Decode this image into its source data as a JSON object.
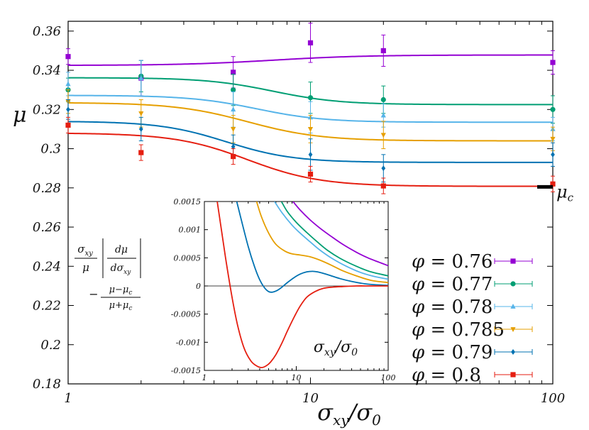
{
  "chart_data": [
    {
      "type": "scatter",
      "role": "main",
      "xscale": "log",
      "xlim": [
        1,
        100
      ],
      "ylim": [
        0.18,
        0.365
      ],
      "xticks": [
        1,
        10,
        100
      ],
      "xtick_labels": [
        "1",
        "10",
        "100"
      ],
      "yticks": [
        0.18,
        0.2,
        0.22,
        0.24,
        0.26,
        0.28,
        0.3,
        0.32,
        0.34,
        0.36
      ],
      "ytick_labels": [
        "0.18",
        "0.2",
        "0.22",
        "0.24",
        "0.26",
        "0.28",
        "0.3",
        "0.32",
        "0.34",
        "0.36"
      ],
      "xlabel_base": "σ",
      "xlabel_sub": "xy",
      "xlabel_den": "/σ",
      "xlabel_den_sub": "0",
      "ylabel": "μ",
      "annotation": {
        "text": "μ",
        "sub": "c",
        "value": 0.2805
      },
      "series": [
        {
          "name": "0.76",
          "label_prefix": "φ = ",
          "color": "#9400d3",
          "marker": "square",
          "x": [
            1,
            2,
            4.8,
            10,
            20,
            100
          ],
          "y": [
            0.347,
            0.336,
            0.339,
            0.354,
            0.35,
            0.344
          ],
          "err": [
            0.004,
            0.009,
            0.008,
            0.01,
            0.008,
            0.006
          ],
          "fit": {
            "start": 0.3425,
            "end": 0.3478,
            "center": 7,
            "width": 0.75
          }
        },
        {
          "name": "0.77",
          "label_prefix": "φ = ",
          "color": "#009e73",
          "marker": "circle",
          "x": [
            1,
            2,
            4.8,
            10,
            20,
            100
          ],
          "y": [
            0.33,
            0.337,
            0.33,
            0.326,
            0.325,
            0.32
          ],
          "err": [
            0.006,
            0.008,
            0.008,
            0.008,
            0.007,
            0.007
          ],
          "fit": {
            "start": 0.3362,
            "end": 0.3225,
            "center": 7,
            "width": 0.55
          }
        },
        {
          "name": "0.78",
          "label_prefix": "φ = ",
          "color": "#56b4e9",
          "marker": "triangle",
          "x": [
            1,
            2,
            4.8,
            10,
            20,
            100
          ],
          "y": [
            0.333,
            0.336,
            0.32,
            0.316,
            0.317,
            0.31
          ],
          "err": [
            0.006,
            0.009,
            0.009,
            0.008,
            0.006,
            0.006
          ],
          "fit": {
            "start": 0.3272,
            "end": 0.3135,
            "center": 6,
            "width": 0.55
          }
        },
        {
          "name": "0.785",
          "label_prefix": "φ = ",
          "color": "#e69f00",
          "marker": "triangle-down",
          "x": [
            1,
            2,
            4.8,
            10,
            20,
            100
          ],
          "y": [
            0.324,
            0.318,
            0.31,
            0.31,
            0.307,
            0.305
          ],
          "err": [
            0.006,
            0.007,
            0.007,
            0.007,
            0.007,
            0.006
          ],
          "fit": {
            "start": 0.3235,
            "end": 0.304,
            "center": 5.5,
            "width": 0.6
          }
        },
        {
          "name": "0.79",
          "label_prefix": "φ = ",
          "color": "#0072b2",
          "marker": "diamond",
          "x": [
            1,
            2,
            4.8,
            10,
            20,
            100
          ],
          "y": [
            0.32,
            0.31,
            0.301,
            0.297,
            0.29,
            0.297
          ],
          "err": [
            0.005,
            0.006,
            0.006,
            0.008,
            0.007,
            0.006
          ],
          "fit": {
            "start": 0.314,
            "end": 0.293,
            "center": 4.5,
            "width": 0.55
          }
        },
        {
          "name": "0.8",
          "label_prefix": "φ = ",
          "color": "#e51e10",
          "marker": "square",
          "x": [
            1,
            2,
            4.8,
            10,
            20,
            100
          ],
          "y": [
            0.312,
            0.298,
            0.296,
            0.287,
            0.281,
            0.282
          ],
          "err": [
            0.004,
            0.004,
            0.004,
            0.004,
            0.004,
            0.004
          ],
          "fit": {
            "start": 0.308,
            "end": 0.2808,
            "center": 5.5,
            "width": 0.6
          }
        }
      ]
    },
    {
      "type": "line",
      "role": "inset",
      "xscale": "log",
      "xlim": [
        1,
        100
      ],
      "ylim": [
        -0.0015,
        0.0015
      ],
      "xticks": [
        1,
        10,
        100
      ],
      "xtick_labels": [
        "1",
        "10",
        "100"
      ],
      "yticks": [
        -0.0015,
        -0.001,
        -0.0005,
        0,
        0.0005,
        0.001,
        0.0015
      ],
      "ytick_labels": [
        "-0.0015",
        "-0.001",
        "-0.0005",
        "0",
        "0.0005",
        "0.001",
        "0.0015"
      ],
      "xlabel_base": "σ",
      "xlabel_sub": "xy",
      "xlabel_den": "/σ",
      "xlabel_den_sub": "0",
      "ylabel_parts": {
        "sigma": "σ",
        "sigma_sub": "xy",
        "mu": "μ",
        "d_mu": "dμ",
        "d_sigma": "dσ",
        "d_sigma_sub": "xy",
        "minus": "−",
        "mu_minus": "μ−μ",
        "mu_plus": "μ+μ",
        "c": "c"
      },
      "series": [
        {
          "name": "0.76",
          "color": "#9400d3",
          "x": [
            9.2,
            11,
            14,
            18,
            24,
            32,
            45,
            60,
            80,
            100
          ],
          "y": [
            0.0015,
            0.00135,
            0.00118,
            0.00103,
            0.00088,
            0.00074,
            0.0006,
            0.0005,
            0.00042,
            0.00036
          ]
        },
        {
          "name": "0.77",
          "color": "#009e73",
          "x": [
            6.9,
            8,
            10,
            13,
            17,
            22,
            30,
            45,
            65,
            100
          ],
          "y": [
            0.0015,
            0.00132,
            0.00113,
            0.00095,
            0.00078,
            0.00063,
            0.00049,
            0.00035,
            0.00025,
            0.00018
          ]
        },
        {
          "name": "0.78",
          "color": "#56b4e9",
          "x": [
            5.8,
            7,
            9,
            11,
            14,
            18,
            25,
            35,
            50,
            70,
            100
          ],
          "y": [
            0.0015,
            0.0013,
            0.00108,
            0.00094,
            0.00079,
            0.00064,
            0.00048,
            0.00035,
            0.00024,
            0.00017,
            0.00012
          ]
        },
        {
          "name": "0.785",
          "color": "#e69f00",
          "x": [
            3.7,
            4.2,
            5,
            6,
            7.5,
            9,
            11,
            14,
            18,
            24,
            32,
            45,
            65,
            100
          ],
          "y": [
            0.0015,
            0.00122,
            0.00094,
            0.00074,
            0.00062,
            0.00057,
            0.00055,
            0.00052,
            0.00046,
            0.00037,
            0.00027,
            0.00018,
            0.0001,
            6e-05
          ]
        },
        {
          "name": "0.79",
          "color": "#0072b2",
          "x": [
            2.25,
            2.5,
            3,
            3.5,
            4,
            4.5,
            5,
            5.5,
            6.2,
            7,
            8,
            9.5,
            11,
            13,
            15,
            17,
            20,
            24,
            30,
            40,
            55,
            75,
            100
          ],
          "y": [
            0.0015,
            0.0012,
            0.0007,
            0.00035,
            0.00011,
            -3e-05,
            -0.0001,
            -0.00011,
            -8e-05,
            -2e-05,
            6e-05,
            0.00015,
            0.00021,
            0.00025,
            0.00026,
            0.00025,
            0.00022,
            0.00018,
            0.00013,
            8e-05,
            4e-05,
            2e-05,
            1e-05
          ]
        },
        {
          "name": "0.8",
          "color": "#e51e10",
          "x": [
            1.38,
            1.5,
            1.7,
            2,
            2.3,
            2.7,
            3.2,
            3.7,
            4.2,
            4.7,
            5.2,
            6,
            7,
            8,
            9.5,
            11,
            13,
            16,
            20,
            25,
            32,
            45,
            65,
            100
          ],
          "y": [
            0.0015,
            0.0011,
            0.0005,
            -0.0002,
            -0.0007,
            -0.0011,
            -0.00133,
            -0.00142,
            -0.00145,
            -0.00142,
            -0.00136,
            -0.00122,
            -0.00101,
            -0.0008,
            -0.00055,
            -0.00036,
            -0.0002,
            -0.0001,
            -4e-05,
            -2e-05,
            -1e-05,
            0,
            0,
            0
          ]
        }
      ]
    }
  ]
}
